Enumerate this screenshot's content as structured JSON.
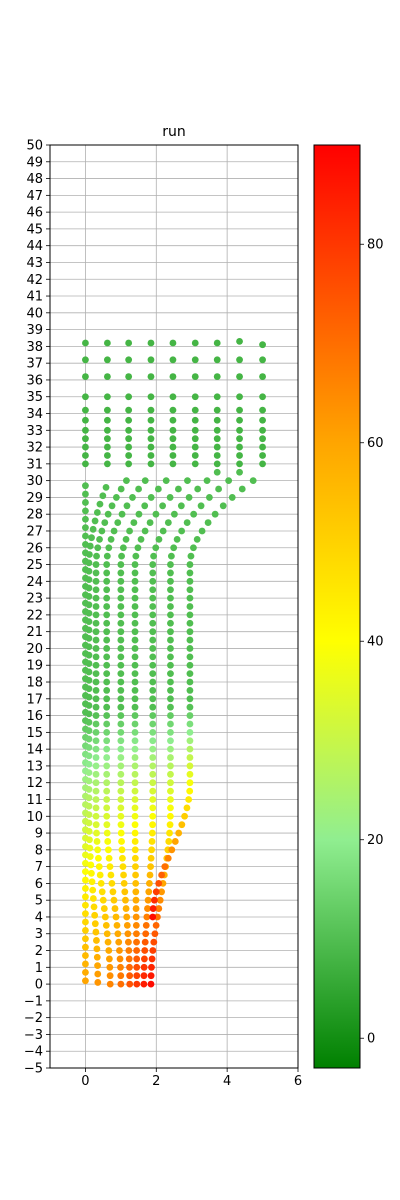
{
  "chart_data": {
    "type": "scatter",
    "title": "run",
    "xlabel": "",
    "ylabel": "",
    "xlim": [
      -1,
      6
    ],
    "ylim": [
      -5,
      50
    ],
    "x_ticks": [
      0,
      2,
      4,
      6
    ],
    "y_ticks": [
      -5,
      -4,
      -3,
      -2,
      -1,
      0,
      1,
      2,
      3,
      4,
      5,
      6,
      7,
      8,
      9,
      10,
      11,
      12,
      13,
      14,
      15,
      16,
      17,
      18,
      19,
      20,
      21,
      22,
      23,
      24,
      25,
      26,
      27,
      28,
      29,
      30,
      31,
      32,
      33,
      34,
      35,
      36,
      37,
      38,
      39,
      40,
      41,
      42,
      43,
      44,
      45,
      46,
      47,
      48,
      49,
      50
    ],
    "grid": true,
    "colorbar": {
      "range": [
        -3,
        90
      ],
      "ticks": [
        0,
        20,
        40,
        60,
        80
      ],
      "stops": [
        {
          "value": -3,
          "color": "#008000"
        },
        {
          "value": 20,
          "color": "#90ee90"
        },
        {
          "value": 40,
          "color": "#ffff00"
        },
        {
          "value": 60,
          "color": "#ffa500"
        },
        {
          "value": 90,
          "color": "#ff0000"
        }
      ]
    },
    "series": [
      {
        "start": [
          0.0,
          0.2
        ],
        "vertical_x": 0.0,
        "curve_start_y": 16.0,
        "curve_end_y": 29.8,
        "top_x": 0.0,
        "top_y": 38.2,
        "start_value": 60,
        "end_value": 10
      },
      {
        "start": [
          0.35,
          0.1
        ],
        "vertical_x": 0.1,
        "curve_start_y": 16.0,
        "curve_end_y": 29.8,
        "top_x": 0.62,
        "top_y": 38.2,
        "start_value": 63,
        "end_value": 10
      },
      {
        "start": [
          0.7,
          0.0
        ],
        "vertical_x": 0.3,
        "curve_start_y": 16.2,
        "curve_end_y": 30.2,
        "top_x": 1.22,
        "top_y": 38.2,
        "start_value": 66,
        "end_value": 10
      },
      {
        "start": [
          1.0,
          0.0
        ],
        "vertical_x": 0.6,
        "curve_start_y": 16.3,
        "curve_end_y": 30.4,
        "top_x": 1.85,
        "top_y": 38.2,
        "start_value": 70,
        "end_value": 10
      },
      {
        "start": [
          1.25,
          0.0
        ],
        "vertical_x": 1.0,
        "curve_start_y": 16.4,
        "curve_end_y": 30.4,
        "top_x": 2.47,
        "top_y": 38.2,
        "start_value": 75,
        "end_value": 10
      },
      {
        "start": [
          1.45,
          0.0
        ],
        "vertical_x": 1.4,
        "curve_start_y": 16.5,
        "curve_end_y": 30.4,
        "top_x": 3.1,
        "top_y": 38.2,
        "start_value": 80,
        "end_value": 10
      },
      {
        "start": [
          1.65,
          0.0
        ],
        "vertical_x": 1.9,
        "curve_start_y": 16.5,
        "curve_end_y": 30.5,
        "top_x": 3.72,
        "top_y": 38.2,
        "start_value": 85,
        "end_value": 10
      },
      {
        "start": [
          1.85,
          0.0
        ],
        "vertical_x": 2.4,
        "curve_start_y": 16.6,
        "curve_end_y": 30.5,
        "top_x": 4.35,
        "top_y": 38.3,
        "start_value": 88,
        "end_value": 10
      },
      {
        "start": [
          1.9,
          4.0
        ],
        "vertical_x": 2.95,
        "curve_start_y": 16.6,
        "curve_end_y": 30.4,
        "top_x": 5.0,
        "top_y": 38.1,
        "start_value": 88,
        "end_value": 10
      }
    ]
  }
}
